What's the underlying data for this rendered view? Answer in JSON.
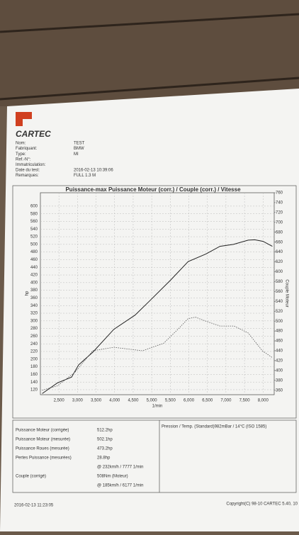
{
  "header": {
    "logo": "CARTEC",
    "fields": [
      {
        "label": "Nom:",
        "value": "TEST"
      },
      {
        "label": "Fabriquant:",
        "value": "BMW"
      },
      {
        "label": "Type:",
        "value": "MI"
      },
      {
        "label": "Ref.-N°:"
      },
      {
        "label": "Immatriculation:"
      },
      {
        "label": "Date du test:",
        "value": "2016-02-13 10:39:06"
      },
      {
        "label": "Remarques:",
        "value": "FULL 1.3 M"
      }
    ]
  },
  "chart_data": {
    "type": "line",
    "title": "Puissance-max Puissance Moteur (corr.) / Couple (corr.) / Vitesse",
    "x_label": "1/min",
    "y_label": "hp",
    "y2_label": "Couple Moteur",
    "xlim": [
      2000,
      8300
    ],
    "xticks": [
      {
        "value": 2500,
        "label": "2,500"
      },
      {
        "value": 3000,
        "label": "3,000"
      },
      {
        "value": 3500,
        "label": "3,500"
      },
      {
        "value": 4000,
        "label": "4,000"
      },
      {
        "value": 4500,
        "label": "4,500"
      },
      {
        "value": 5000,
        "label": "5,000"
      },
      {
        "value": 5500,
        "label": "5,500"
      },
      {
        "value": 6000,
        "label": "6,000"
      },
      {
        "value": 6500,
        "label": "6,500"
      },
      {
        "value": 7000,
        "label": "7,000"
      },
      {
        "value": 7500,
        "label": "7,500"
      },
      {
        "value": 8000,
        "label": "8,000"
      }
    ],
    "ylim": [
      107,
      635
    ],
    "yticks": [
      120,
      140,
      160,
      180,
      200,
      220,
      240,
      260,
      280,
      300,
      320,
      340,
      360,
      380,
      400,
      420,
      440,
      460,
      480,
      500,
      520,
      540,
      560,
      580,
      600
    ],
    "y2lim": [
      351,
      760
    ],
    "y2ticks": [
      360,
      380,
      400,
      420,
      440,
      460,
      480,
      500,
      520,
      540,
      560,
      580,
      600,
      620,
      640,
      660,
      680,
      700,
      720,
      740,
      760
    ],
    "grid": true,
    "series": [
      {
        "name": "Puissance Moteur (corr.)",
        "color": "#222",
        "style": "solid",
        "x": [
          2050,
          2460,
          2840,
          3030,
          3410,
          3980,
          4550,
          4940,
          5510,
          5980,
          6460,
          6840,
          7200,
          7600,
          7777,
          8000,
          8250
        ],
        "values": [
          110,
          138,
          153,
          185,
          218,
          278,
          315,
          352,
          407,
          455,
          475,
          495,
          500,
          511,
          512,
          508,
          495
        ]
      },
      {
        "name": "Couple (corr.)",
        "color": "#555",
        "style": "dotted",
        "axis": "y2",
        "x": [
          2050,
          2460,
          2940,
          3410,
          3980,
          4750,
          5320,
          5700,
          5980,
          6177,
          6460,
          6840,
          7220,
          7600,
          7980,
          8250
        ],
        "values": [
          360,
          369,
          397,
          440,
          447,
          440,
          455,
          483,
          505,
          508,
          500,
          490,
          490,
          476,
          440,
          426
        ]
      }
    ]
  },
  "results": {
    "rows": [
      {
        "label": "Puissance Moteur (corrigée)",
        "value": "512.2hp"
      },
      {
        "label": "Puissance Moteur (mesurée)",
        "value": "502.1hp"
      },
      {
        "label": "Puissance Roues (mesurée)",
        "value": "473.2hp"
      },
      {
        "label": "Pertes Puissance (mesurées)",
        "value": "28.8hp"
      },
      {
        "value": "@ 232km/h / 7777 1/min"
      },
      {
        "label": "Couple (corrigé)",
        "value": "508Nm (Moteur)"
      },
      {
        "value": "@ 185km/h / 6177 1/min"
      }
    ],
    "conditions": "Pression / Temp. (Standard)982mBar / 14°C   (ISO 1585)"
  },
  "footer": {
    "date": "2016-02-13 11:23:05",
    "copyright": "Copyright(C) 98-10 CARTEC 5.40, 10"
  }
}
